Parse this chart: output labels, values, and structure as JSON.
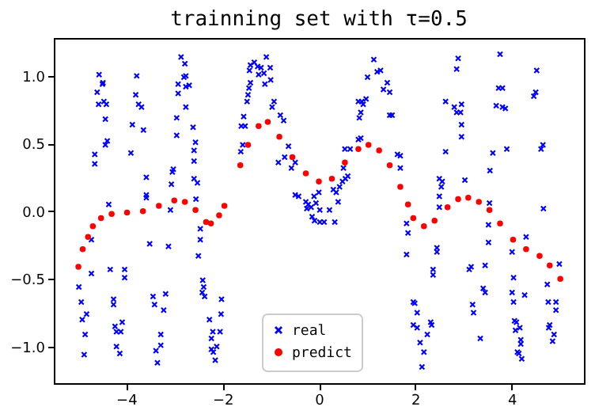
{
  "chart_data": {
    "type": "scatter",
    "title": "trainning set with τ=0.5",
    "xlim": [
      -5.5,
      5.5
    ],
    "ylim": [
      -1.27,
      1.28
    ],
    "xticks": [
      {
        "value": -4,
        "label": "−4"
      },
      {
        "value": -2,
        "label": "−2"
      },
      0,
      2,
      4
    ],
    "yticks": [
      {
        "value": -1,
        "label": "−1.0"
      },
      {
        "value": -0.5,
        "label": "−0.5"
      },
      {
        "value": 0,
        "label": "0.0"
      },
      {
        "value": 0.5,
        "label": "0.5"
      },
      {
        "value": 1,
        "label": "1.0"
      }
    ],
    "grid": false,
    "legend": "bottom",
    "series": [
      {
        "name": "real",
        "color": "#0000ff",
        "marker": "cross",
        "x": [
          -4.56,
          -4.48,
          -4.49,
          -4.6,
          -4.46,
          -4.57,
          -4.41,
          -4.43,
          -4.39,
          -4.43,
          -4.65,
          -4.65,
          -4.36,
          -4.72,
          -4.72,
          -4.33,
          -4.98,
          -4.93,
          -4.82,
          -4.91,
          -4.85,
          -4.87,
          -4.26,
          -4.26,
          -4.08,
          -4.23,
          -4.2,
          -4.11,
          -4.2,
          -4.13,
          -4.03,
          -4.03,
          -3.78,
          -3.8,
          -3.74,
          -3.68,
          -3.64,
          -3.87,
          -3.9,
          -3.58,
          -3.58,
          -3.58,
          -3.51,
          -3.44,
          -3.41,
          -3.35,
          -3.38,
          -3.28,
          -3.28,
          -3.22,
          -3.18,
          -3.12,
          -3.08,
          -3.06,
          -3.04,
          -3.02,
          -2.95,
          -2.95,
          -2.86,
          -2.78,
          -2.76,
          -2.8,
          -2.92,
          -2.76,
          -2.69,
          -2.92,
          -2.76,
          -2.61,
          -2.56,
          -2.59,
          -2.59,
          -2.59,
          -2.52,
          -2.55,
          -2.46,
          -2.46,
          -2.5,
          -2.41,
          -2.39,
          -2.42,
          -2.37,
          -2.27,
          -2.02,
          -2.03,
          -2.2,
          -2.05,
          -2.23,
          -2.23,
          -2.12,
          -2.15,
          -2.19,
          -1.09,
          -1.34,
          -1.42,
          -1.27,
          -1.2,
          -1.01,
          -1.44,
          -1.14,
          -1.25,
          -1.0,
          -1.12,
          -1.42,
          -1.45,
          -1.47,
          -1.49,
          -1.56,
          -1.61,
          -1.53,
          -0.93,
          -0.97,
          -0.8,
          -0.73,
          -1.62,
          -1.58,
          -0.63,
          -0.71,
          -0.57,
          -0.84,
          -0.49,
          -0.49,
          -0.42,
          -0.27,
          -0.22,
          -0.16,
          -0.25,
          -0.1,
          -0.06,
          0.0,
          0.02,
          -0.14,
          -0.09,
          0.02,
          0.11,
          0.22,
          0.33,
          0.4,
          0.3,
          0.36,
          0.43,
          0.49,
          0.55,
          0.6,
          0.51,
          0.54,
          0.65,
          0.82,
          0.87,
          1.14,
          1.01,
          1.21,
          1.28,
          1.42,
          1.34,
          1.47,
          0.82,
          0.89,
          0.98,
          0.92,
          0.84,
          0.87,
          1.47,
          1.52,
          1.63,
          1.69,
          1.69,
          1.82,
          1.85,
          1.82,
          2.89,
          2.86,
          2.63,
          2.81,
          2.96,
          2.86,
          2.94,
          2.96,
          2.96,
          2.63,
          2.5,
          2.56,
          2.54,
          3.03,
          2.5,
          2.5,
          2.45,
          2.45,
          2.37,
          2.37,
          1.96,
          1.99,
          2.04,
          1.96,
          2.04,
          2.1,
          2.25,
          2.32,
          2.34,
          2.18,
          2.14,
          3.76,
          3.73,
          3.81,
          3.68,
          3.81,
          3.87,
          3.61,
          3.9,
          3.55,
          3.54,
          3.52,
          3.52,
          3.45,
          3.16,
          3.12,
          3.41,
          3.45,
          3.19,
          3.21,
          3.35,
          4.52,
          4.5,
          4.46,
          4.65,
          4.61,
          4.66,
          4.3,
          4.01,
          4.04,
          4.01,
          4.27,
          4.04,
          4.06,
          4.1,
          4.17,
          4.08,
          4.19,
          4.19,
          4.12,
          4.15,
          4.21,
          4.99,
          4.74,
          4.76,
          4.92,
          4.92,
          4.79,
          4.77,
          4.88,
          4.85
        ],
        "values": [
          1.01,
          0.95,
          0.94,
          0.88,
          0.81,
          0.79,
          0.79,
          0.68,
          0.52,
          0.49,
          0.42,
          0.35,
          0.05,
          -0.21,
          -0.46,
          -0.43,
          -0.56,
          -0.67,
          -0.76,
          -0.8,
          -0.91,
          -1.06,
          -0.65,
          -0.69,
          -0.82,
          -0.85,
          -0.89,
          -0.89,
          -1.0,
          -1.05,
          -0.43,
          -0.49,
          1.0,
          0.86,
          0.79,
          0.77,
          0.6,
          0.64,
          0.43,
          0.25,
          0.12,
          0.1,
          -0.24,
          -0.63,
          -0.69,
          -1.12,
          -1.03,
          -0.91,
          -0.99,
          -0.73,
          -0.61,
          -0.26,
          0.01,
          0.2,
          0.29,
          0.31,
          0.69,
          0.56,
          1.14,
          1.09,
          1.0,
          0.99,
          0.94,
          0.92,
          0.93,
          0.87,
          0.77,
          0.62,
          0.51,
          0.45,
          0.37,
          0.24,
          0.21,
          0.09,
          -0.13,
          -0.21,
          -0.33,
          -0.51,
          -0.56,
          -0.6,
          -0.63,
          -0.8,
          -0.65,
          -0.76,
          -0.89,
          -0.89,
          -0.94,
          -1.02,
          -1.0,
          -1.1,
          -1.04,
          1.14,
          1.1,
          1.08,
          1.07,
          1.06,
          1.06,
          1.04,
          1.02,
          1.01,
          0.97,
          0.94,
          0.95,
          0.91,
          0.86,
          0.81,
          0.7,
          0.63,
          0.63,
          0.81,
          0.77,
          0.71,
          0.67,
          0.44,
          0.49,
          0.48,
          0.4,
          0.32,
          0.36,
          0.36,
          0.12,
          0.11,
          0.07,
          0.05,
          0.03,
          0.02,
          0.11,
          0.06,
          0.14,
          0.01,
          -0.04,
          -0.07,
          -0.08,
          -0.08,
          0.01,
          -0.08,
          0.07,
          0.16,
          0.14,
          0.18,
          0.22,
          0.24,
          0.26,
          0.32,
          0.46,
          0.46,
          0.53,
          0.54,
          1.12,
          0.99,
          1.03,
          1.04,
          0.95,
          0.9,
          0.88,
          0.81,
          0.81,
          0.83,
          0.79,
          0.69,
          0.73,
          0.71,
          0.71,
          0.42,
          0.41,
          0.32,
          -0.09,
          -0.16,
          -0.32,
          1.13,
          1.05,
          0.81,
          0.77,
          0.79,
          0.73,
          0.73,
          0.64,
          0.55,
          0.44,
          0.24,
          0.22,
          0.18,
          0.23,
          0.11,
          0.03,
          -0.27,
          -0.3,
          -0.43,
          -0.47,
          -0.67,
          -0.68,
          -0.75,
          -0.84,
          -0.86,
          -0.97,
          -0.91,
          -0.82,
          -0.84,
          -1.04,
          -1.15,
          1.16,
          0.91,
          0.91,
          0.78,
          0.77,
          0.76,
          0.43,
          0.46,
          0.3,
          0.06,
          -0.1,
          -0.23,
          -0.4,
          -0.41,
          -0.43,
          -0.57,
          -0.6,
          -0.69,
          -0.75,
          -0.94,
          1.04,
          0.88,
          0.85,
          0.49,
          0.46,
          0.02,
          -0.19,
          -0.3,
          -0.49,
          -0.6,
          -0.62,
          -0.67,
          -0.81,
          -0.82,
          -0.86,
          -0.88,
          -0.95,
          -0.98,
          -1.04,
          -1.05,
          -1.09,
          -0.39,
          -0.54,
          -0.67,
          -0.67,
          -0.73,
          -0.84,
          -0.86,
          -0.91,
          -0.96
        ]
      },
      {
        "name": "predict",
        "color": "#ff0000",
        "marker": "circle",
        "x": [
          -4.99,
          -4.9,
          -4.79,
          -4.69,
          -4.52,
          -4.3,
          -3.98,
          -3.65,
          -3.32,
          -3.0,
          -2.78,
          -2.56,
          -2.34,
          -2.24,
          -2.07,
          -1.96,
          -1.63,
          -1.47,
          -1.25,
          -1.06,
          -0.82,
          -0.55,
          -0.27,
          0.0,
          0.27,
          0.54,
          0.82,
          1.03,
          1.25,
          1.47,
          1.69,
          1.85,
          1.96,
          2.18,
          2.4,
          2.67,
          2.89,
          3.1,
          3.32,
          3.54,
          3.76,
          4.03,
          4.3,
          4.58,
          4.79,
          5.01
        ],
        "values": [
          -0.41,
          -0.28,
          -0.19,
          -0.11,
          -0.05,
          -0.02,
          -0.01,
          0.0,
          0.04,
          0.08,
          0.07,
          0.01,
          -0.08,
          -0.09,
          -0.03,
          0.04,
          0.34,
          0.49,
          0.63,
          0.66,
          0.55,
          0.4,
          0.28,
          0.22,
          0.24,
          0.36,
          0.46,
          0.49,
          0.45,
          0.34,
          0.18,
          0.05,
          -0.05,
          -0.11,
          -0.07,
          0.03,
          0.09,
          0.1,
          0.07,
          0.01,
          -0.09,
          -0.21,
          -0.28,
          -0.33,
          -0.4,
          -0.5
        ]
      }
    ]
  }
}
